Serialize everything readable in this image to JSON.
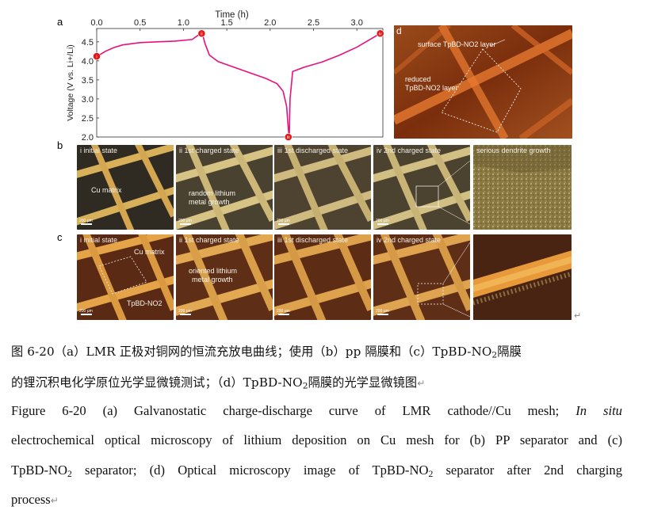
{
  "chart_data": {
    "type": "line",
    "xlabel": "Time (h)",
    "ylabel": "Voltage (V vs. Li+/Li)",
    "xlim": [
      0,
      3.3
    ],
    "ylim": [
      2.0,
      4.85
    ],
    "x_ticks": [
      "0.0",
      "0.5",
      "1.0",
      "1.5",
      "2.0",
      "2.5",
      "3.0"
    ],
    "y_ticks": [
      "2.0",
      "2.5",
      "3.0",
      "3.5",
      "4.0",
      "4.5"
    ],
    "series": [
      {
        "color": "#e8107c",
        "x": [
          0.0,
          0.05,
          0.1,
          0.2,
          0.3,
          0.5,
          0.7,
          0.9,
          1.1,
          1.2,
          1.22,
          1.25,
          1.3,
          1.4,
          1.6,
          1.8,
          1.95,
          2.08,
          2.15,
          2.19,
          2.21,
          2.22,
          2.23,
          2.26,
          2.4,
          2.6,
          2.8,
          3.0,
          3.15,
          3.27
        ],
        "y": [
          4.12,
          4.18,
          4.25,
          4.35,
          4.42,
          4.48,
          4.5,
          4.52,
          4.56,
          4.72,
          4.7,
          4.45,
          4.15,
          3.98,
          3.82,
          3.66,
          3.54,
          3.4,
          3.2,
          2.8,
          2.2,
          1.98,
          3.0,
          3.72,
          3.84,
          3.97,
          4.15,
          4.36,
          4.56,
          4.72
        ]
      }
    ],
    "markers": [
      {
        "label": "i",
        "x": 0.0,
        "y": 4.12
      },
      {
        "label": "ii",
        "x": 1.21,
        "y": 4.72
      },
      {
        "label": "iii",
        "x": 2.21,
        "y": 2.0
      },
      {
        "label": "iv",
        "x": 3.27,
        "y": 4.72
      }
    ],
    "grid": false
  },
  "figure": {
    "panel_a": "a",
    "panel_b": "b",
    "panel_c": "c",
    "panel_d": "d",
    "panel_d_labels": {
      "surface": "surface TpBD-NO2 layer",
      "reduced_line1": "reduced",
      "reduced_line2": "TpBD-NO2 layer"
    },
    "row_b": [
      {
        "label": "i  initial state",
        "annotation": "Cu matrix"
      },
      {
        "label": "ii  1st charged state",
        "annotation_line1": "random lithium",
        "annotation_line2": "metal growth"
      },
      {
        "label": "iii  1st discharged state"
      },
      {
        "label": "iv  2nd charged state"
      },
      {
        "label": "serious dendrite growth"
      }
    ],
    "row_c": [
      {
        "label": "i  initial state",
        "annotation": "Cu matrix",
        "annotation2": "TpBD-NO2"
      },
      {
        "label": "ii  1st charged state",
        "annotation_line1": "oriented lithium",
        "annotation_line2": "metal  growth"
      },
      {
        "label": "iii  1st discharged state"
      },
      {
        "label": "iv  2nd charged state"
      }
    ],
    "scale_bar": "200 μm",
    "return_mark": "↵"
  },
  "captions": {
    "cn_line1_a": "图 6-20（a）LMR 正极对铜网的恒流充放电曲线；使用（b）pp 隔膜和（c）TpBD-NO",
    "cn_line1_sub": "2",
    "cn_line1_b": "隔膜",
    "cn_line2_a": "的锂沉积电化学原位光学显微镜测试；（d）TpBD-NO",
    "cn_line2_sub": "2",
    "cn_line2_b": "隔膜的光学显微镜图",
    "en_line1_a": "Figure 6-20 (a) Galvanostatic charge-discharge curve of LMR cathode//Cu mesh;",
    "en_line1_italic": "In situ",
    "en_line2": "electrochemical optical microscopy of lithium deposition on Cu mesh for (b) PP separator and (c)",
    "en_line3_a": "TpBD-NO",
    "en_line3_sub": "2",
    "en_line3_b": " separator; (d) Optical microscopy image of TpBD-NO",
    "en_line3_sub2": "2",
    "en_line3_c": " separator after 2nd charging",
    "en_line4": "process",
    "para_mark": "↵"
  }
}
